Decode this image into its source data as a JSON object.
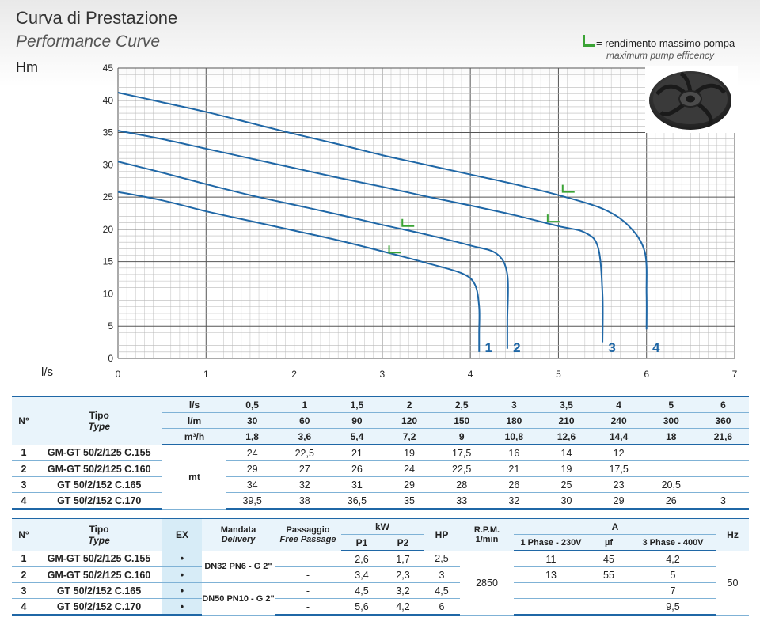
{
  "header": {
    "title_it": "Curva di Prestazione",
    "title_en": "Performance Curve",
    "legend_label": "= rendimento massimo pompa",
    "legend_sublabel": "maximum pump efficency"
  },
  "colors": {
    "curve": "#1f67a6",
    "grid": "#9a9a9a",
    "efficiency_marker": "#3aa335",
    "accent_table": "#7fb2d6"
  },
  "icons": {
    "impeller": "pump-impeller-icon",
    "efficiency": "efficiency-l-icon"
  },
  "chart_data": {
    "type": "line",
    "xlabel": "l/s",
    "ylabel": "Hm",
    "xlim": [
      0,
      7
    ],
    "ylim": [
      0,
      45
    ],
    "xticks": [
      0,
      1,
      2,
      3,
      4,
      5,
      6,
      7
    ],
    "yticks": [
      0,
      5,
      10,
      15,
      20,
      25,
      30,
      35,
      40,
      45
    ],
    "grid": true,
    "series": [
      {
        "name": "1",
        "x": [
          0,
          0.5,
          1,
          1.5,
          2,
          2.5,
          3,
          3.5,
          3.9,
          4.05,
          4.1,
          4.1,
          4.1
        ],
        "y": [
          25.8,
          24.5,
          22.8,
          21.3,
          19.8,
          18.3,
          16.6,
          14.8,
          13.2,
          11.5,
          8,
          4,
          1
        ]
      },
      {
        "name": "2",
        "x": [
          0,
          0.5,
          1,
          1.5,
          2,
          2.5,
          3,
          3.5,
          4,
          4.3,
          4.42,
          4.42,
          4.42
        ],
        "y": [
          30.5,
          28.8,
          27,
          25.3,
          23.8,
          22.3,
          20.7,
          19.2,
          17.5,
          16.2,
          13,
          6,
          1.5
        ]
      },
      {
        "name": "3",
        "x": [
          0,
          0.5,
          1,
          1.5,
          2,
          2.5,
          3,
          3.5,
          4,
          4.5,
          5,
          5.3,
          5.45,
          5.5,
          5.5
        ],
        "y": [
          35.3,
          34,
          32.5,
          31,
          29.5,
          28,
          26.6,
          25.1,
          23.7,
          22.2,
          20.5,
          19.5,
          17.2,
          10,
          2.5
        ]
      },
      {
        "name": "4",
        "x": [
          0,
          0.5,
          1,
          1.5,
          2,
          2.5,
          3,
          3.5,
          4,
          4.5,
          5,
          5.5,
          5.8,
          5.98,
          6,
          6
        ],
        "y": [
          41.2,
          39.7,
          38.2,
          36.5,
          34.8,
          33.2,
          31.5,
          30,
          28.5,
          27,
          25.3,
          23.2,
          20.5,
          16.5,
          10,
          4.5
        ]
      }
    ],
    "efficiency_points": [
      {
        "series": "1",
        "x": 3.15,
        "y": 16.4
      },
      {
        "series": "2",
        "x": 3.3,
        "y": 20.5
      },
      {
        "series": "3",
        "x": 4.95,
        "y": 21.2
      },
      {
        "series": "4",
        "x": 5.12,
        "y": 25.8
      }
    ]
  },
  "table1": {
    "col_n": "N°",
    "col_tipo": "Tipo",
    "col_type": "Type",
    "unit_ls": "l/s",
    "unit_lm": "l/m",
    "unit_m3h": "m³/h",
    "unit_mt": "mt",
    "flow_ls": [
      "0,5",
      "1",
      "1,5",
      "2",
      "2,5",
      "3",
      "3,5",
      "4",
      "5",
      "6"
    ],
    "flow_lm": [
      "30",
      "60",
      "90",
      "120",
      "150",
      "180",
      "210",
      "240",
      "300",
      "360"
    ],
    "flow_m3h": [
      "1,8",
      "3,6",
      "5,4",
      "7,2",
      "9",
      "10,8",
      "12,6",
      "14,4",
      "18",
      "21,6"
    ],
    "rows": [
      {
        "n": "1",
        "name": "GM-GT 50/2/125 C.155",
        "values": [
          "24",
          "22,5",
          "21",
          "19",
          "17,5",
          "16",
          "14",
          "12",
          "",
          ""
        ]
      },
      {
        "n": "2",
        "name": "GM-GT 50/2/125 C.160",
        "values": [
          "29",
          "27",
          "26",
          "24",
          "22,5",
          "21",
          "19",
          "17,5",
          "",
          ""
        ]
      },
      {
        "n": "3",
        "name": "GT 50/2/152 C.165",
        "values": [
          "34",
          "32",
          "31",
          "29",
          "28",
          "26",
          "25",
          "23",
          "20,5",
          ""
        ]
      },
      {
        "n": "4",
        "name": "GT 50/2/152 C.170",
        "values": [
          "39,5",
          "38",
          "36,5",
          "35",
          "33",
          "32",
          "30",
          "29",
          "26",
          "3"
        ]
      }
    ]
  },
  "table2": {
    "col_n": "N°",
    "col_tipo": "Tipo",
    "col_type": "Type",
    "col_ex": "EX",
    "col_mandata": "Mandata",
    "col_delivery": "Delivery",
    "col_passaggio": "Passaggio",
    "col_free": "Free Passage",
    "col_kw": "kW",
    "col_p1": "P1",
    "col_p2": "P2",
    "col_hp": "HP",
    "col_rpm": "R.P.M.",
    "col_rpm_unit": "1/min",
    "col_a": "A",
    "col_1ph": "1 Phase - 230V",
    "col_uf": "µf",
    "col_3ph": "3 Phase - 400V",
    "col_hz": "Hz",
    "delivery_a": "DN32 PN6 - G 2\"",
    "delivery_b": "DN50 PN10 - G 2\"",
    "rpm": "2850",
    "hz": "50",
    "rows": [
      {
        "n": "1",
        "name": "GM-GT 50/2/125 C.155",
        "ex": "•",
        "free": "-",
        "p1": "2,6",
        "p2": "1,7",
        "hp": "2,5",
        "a1": "11",
        "uf": "45",
        "a3": "4,2"
      },
      {
        "n": "2",
        "name": "GM-GT 50/2/125 C.160",
        "ex": "•",
        "free": "-",
        "p1": "3,4",
        "p2": "2,3",
        "hp": "3",
        "a1": "13",
        "uf": "55",
        "a3": "5"
      },
      {
        "n": "3",
        "name": "GT 50/2/152 C.165",
        "ex": "•",
        "free": "-",
        "p1": "4,5",
        "p2": "3,2",
        "hp": "4,5",
        "a1": "",
        "uf": "",
        "a3": "7"
      },
      {
        "n": "4",
        "name": "GT 50/2/152 C.170",
        "ex": "•",
        "free": "-",
        "p1": "5,6",
        "p2": "4,2",
        "hp": "6",
        "a1": "",
        "uf": "",
        "a3": "9,5"
      }
    ]
  }
}
